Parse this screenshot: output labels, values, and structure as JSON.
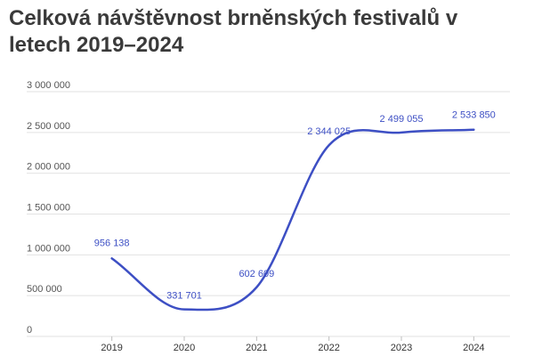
{
  "chart_data": {
    "type": "line",
    "title": "Celková návštěvnost brněnských festivalů v letech 2019–2024",
    "xlabel": "",
    "ylabel": "",
    "categories": [
      "2019",
      "2020",
      "2021",
      "2022",
      "2023",
      "2024"
    ],
    "series": [
      {
        "values": [
          956138,
          331701,
          602609,
          2344025,
          2499055,
          2533850
        ],
        "labels": [
          "956 138",
          "331 701",
          "602 609",
          "2 344 025",
          "2 499 055",
          "2 533 850"
        ]
      }
    ],
    "ylim": [
      0,
      3000000
    ],
    "yticks": [
      0,
      500000,
      1000000,
      1500000,
      2000000,
      2500000,
      3000000
    ],
    "ytick_labels": [
      "0",
      "500 000",
      "1 000 000",
      "1 500 000",
      "2 000 000",
      "2 500 000",
      "3 000 000"
    ],
    "grid": true,
    "line_color": "#3d4fc4",
    "label_color": "#3d4fc4"
  }
}
